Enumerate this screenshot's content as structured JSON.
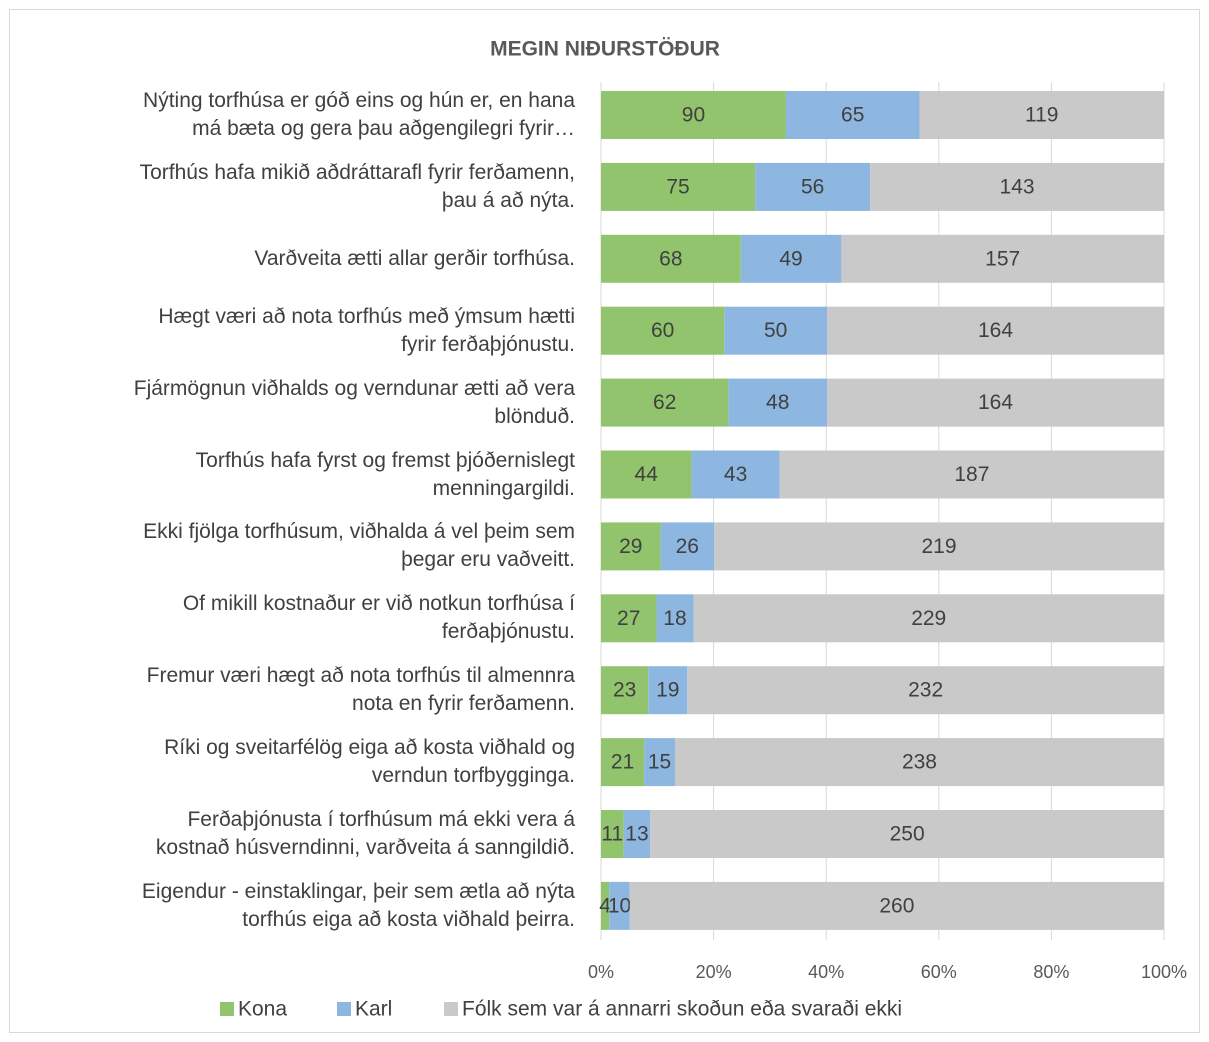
{
  "chart_data": {
    "type": "bar",
    "orientation": "horizontal",
    "stack": "percent",
    "title": "MEGIN NIÐURSTÖÐUR",
    "categories": [
      "Nýting torfhúsa er góð eins og hún er, en hana\nmá bæta og gera þau aðgengilegri fyrir…",
      "Torfhús hafa mikið aðdráttarafl fyrir ferðamenn,\nþau á að nýta.",
      "Varðveita ætti allar gerðir torfhúsa.",
      "Hægt væri að nota torfhús með ýmsum hætti\nfyrir ferðaþjónustu.",
      "Fjármögnun viðhalds og verndunar ætti að vera\nblönduð.",
      "Torfhús hafa fyrst og fremst þjóðernislegt\nmenningargildi.",
      "Ekki fjölga torfhúsum, viðhalda á vel þeim sem\nþegar eru vaðveitt.",
      "Of mikill kostnaður er við notkun torfhúsa í\nferðaþjónustu.",
      "Fremur væri hægt að nota torfhús til almennra\nnota en fyrir ferðamenn.",
      "Ríki og sveitarfélög eiga að kosta viðhald og\nverndun torfbygginga.",
      "Ferðaþjónusta í torfhúsum má ekki vera á\nkostnað húsverndinni, varðveita á sanngildið.",
      "Eigendur - einstaklingar, þeir sem ætla að nýta\ntorfhús eiga að kosta viðhald þeirra."
    ],
    "series": [
      {
        "name": "Kona",
        "color": "#92c46d",
        "values": [
          90,
          75,
          68,
          60,
          62,
          44,
          29,
          27,
          23,
          21,
          11,
          4
        ]
      },
      {
        "name": "Karl",
        "color": "#8db7e1",
        "values": [
          65,
          56,
          49,
          50,
          48,
          43,
          26,
          18,
          19,
          15,
          13,
          10
        ]
      },
      {
        "name": "Fólk sem var á annarri skoðun eða svaraði ekki",
        "color": "#c9c9c9",
        "values": [
          119,
          143,
          157,
          164,
          164,
          187,
          219,
          229,
          232,
          238,
          250,
          260
        ]
      }
    ],
    "xlim": [
      0,
      100
    ],
    "xticks": [
      {
        "value": 0,
        "label": "0%"
      },
      {
        "value": 20,
        "label": "20%"
      },
      {
        "value": 40,
        "label": "40%"
      },
      {
        "value": 60,
        "label": "60%"
      },
      {
        "value": 80,
        "label": "80%"
      },
      {
        "value": 100,
        "label": "100%"
      }
    ],
    "grid": true,
    "legend": "bottom"
  }
}
